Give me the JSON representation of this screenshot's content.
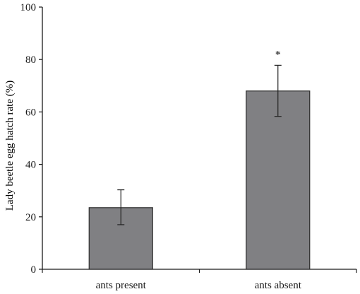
{
  "chart_data": {
    "type": "bar",
    "title": "",
    "xlabel": "",
    "ylabel": "Lady beetle egg hatch rate (%)",
    "categories": [
      "ants present",
      "ants absent"
    ],
    "values": [
      23.5,
      68
    ],
    "error_bars": [
      {
        "lower": 17,
        "upper": 30.3
      },
      {
        "lower": 58.3,
        "upper": 77.8
      }
    ],
    "annotations": [
      "",
      "*"
    ],
    "ylim": [
      0,
      100
    ],
    "yticks": [
      "0",
      "20",
      "40",
      "60",
      "80",
      "100"
    ],
    "grid": false,
    "legend": "none",
    "colors": {
      "bar_fill": "#808083",
      "bar_stroke": "#2b2b2b",
      "axis": "#1a1a1a"
    }
  }
}
